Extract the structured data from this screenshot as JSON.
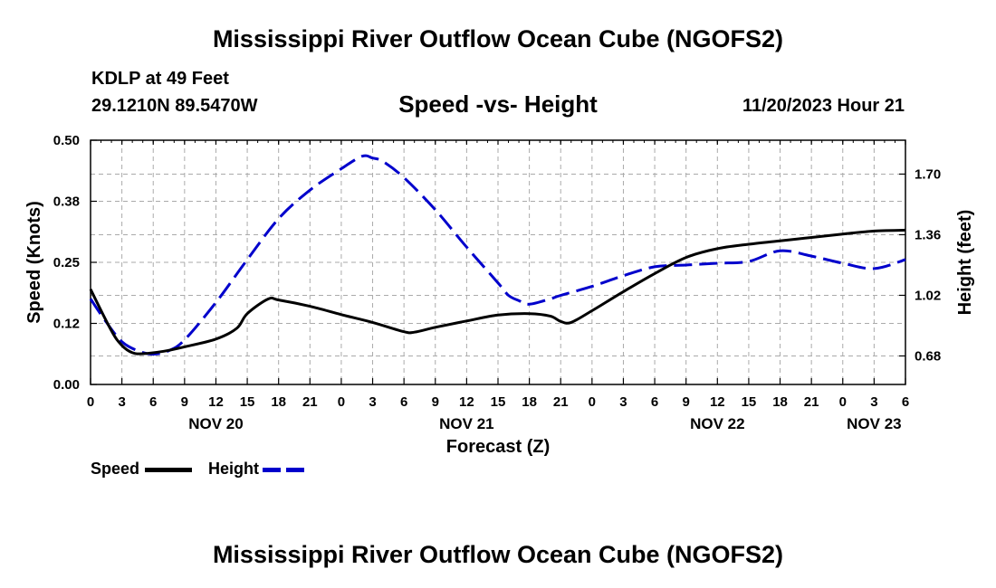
{
  "chart_data": {
    "type": "line",
    "title": "Mississippi River Outflow Ocean Cube (NGOFS2)",
    "footer_title": "Mississippi River Outflow Ocean Cube (NGOFS2)",
    "station": "KDLP at 49 Feet",
    "location": "29.1210N  89.5470W",
    "subtitle": "Speed -vs- Height",
    "run_time": "11/20/2023 Hour 21",
    "xlabel": "Forecast (Z)",
    "ylabel_left": "Speed (Knots)",
    "ylabel_right": "Height (feet)",
    "x_range": [
      0,
      78
    ],
    "x_ticks": [
      {
        "x": 0,
        "label": "0"
      },
      {
        "x": 3,
        "label": "3"
      },
      {
        "x": 6,
        "label": "6"
      },
      {
        "x": 9,
        "label": "9"
      },
      {
        "x": 12,
        "label": "12"
      },
      {
        "x": 15,
        "label": "15"
      },
      {
        "x": 18,
        "label": "18"
      },
      {
        "x": 21,
        "label": "21"
      },
      {
        "x": 24,
        "label": "0"
      },
      {
        "x": 27,
        "label": "3"
      },
      {
        "x": 30,
        "label": "6"
      },
      {
        "x": 33,
        "label": "9"
      },
      {
        "x": 36,
        "label": "12"
      },
      {
        "x": 39,
        "label": "15"
      },
      {
        "x": 42,
        "label": "18"
      },
      {
        "x": 45,
        "label": "21"
      },
      {
        "x": 48,
        "label": "0"
      },
      {
        "x": 51,
        "label": "3"
      },
      {
        "x": 54,
        "label": "6"
      },
      {
        "x": 57,
        "label": "9"
      },
      {
        "x": 60,
        "label": "12"
      },
      {
        "x": 63,
        "label": "15"
      },
      {
        "x": 66,
        "label": "18"
      },
      {
        "x": 69,
        "label": "21"
      },
      {
        "x": 72,
        "label": "0"
      },
      {
        "x": 75,
        "label": "3"
      },
      {
        "x": 78,
        "label": "6"
      }
    ],
    "date_labels": [
      {
        "x": 12,
        "label": "NOV 20"
      },
      {
        "x": 36,
        "label": "NOV 21"
      },
      {
        "x": 60,
        "label": "NOV 22"
      },
      {
        "x": 75,
        "label": "NOV 23"
      }
    ],
    "y_left": {
      "range": [
        0,
        0.5
      ],
      "ticks": [
        0.0,
        0.125,
        0.25,
        0.375,
        0.5
      ],
      "tick_labels": [
        "0.00",
        "0.12",
        "0.25",
        "0.38",
        "0.50"
      ]
    },
    "y_right": {
      "range": [
        0.52,
        1.89
      ],
      "ticks": [
        0.68,
        1.02,
        1.36,
        1.7
      ],
      "tick_labels": [
        "0.68",
        "1.02",
        "1.36",
        "1.70"
      ]
    },
    "grid": true,
    "legend_position": "bottom-left",
    "series": [
      {
        "name": "Speed",
        "axis": "left",
        "color": "#000000",
        "dash": "solid",
        "x": [
          0,
          2,
          3,
          4,
          5,
          7,
          9,
          12,
          14,
          15,
          17,
          18,
          21,
          24,
          27,
          30,
          31,
          33,
          36,
          39,
          42,
          44,
          45,
          46,
          48,
          51,
          54,
          57,
          60,
          63,
          66,
          69,
          72,
          75,
          78
        ],
        "values": [
          0.195,
          0.11,
          0.08,
          0.065,
          0.063,
          0.068,
          0.077,
          0.093,
          0.115,
          0.145,
          0.175,
          0.173,
          0.16,
          0.143,
          0.127,
          0.108,
          0.107,
          0.117,
          0.13,
          0.142,
          0.145,
          0.14,
          0.129,
          0.127,
          0.151,
          0.19,
          0.227,
          0.26,
          0.278,
          0.287,
          0.294,
          0.301,
          0.308,
          0.314,
          0.316
        ]
      },
      {
        "name": "Height",
        "axis": "right",
        "color": "#0000cc",
        "dash": "dashed",
        "x": [
          0,
          1.5,
          3,
          4.5,
          6,
          7.5,
          9,
          12,
          15,
          18,
          21,
          24,
          26,
          27,
          28,
          30,
          33,
          36,
          39,
          40,
          41,
          42,
          44,
          45,
          48,
          51,
          54,
          57,
          60,
          63,
          66,
          69,
          72,
          75,
          78
        ],
        "values": [
          1.0,
          0.87,
          0.76,
          0.71,
          0.69,
          0.71,
          0.77,
          0.98,
          1.22,
          1.45,
          1.61,
          1.73,
          1.8,
          1.79,
          1.77,
          1.68,
          1.5,
          1.29,
          1.09,
          1.02,
          0.99,
          0.97,
          1.0,
          1.02,
          1.07,
          1.13,
          1.18,
          1.19,
          1.2,
          1.21,
          1.27,
          1.24,
          1.2,
          1.17,
          1.22
        ]
      }
    ]
  }
}
